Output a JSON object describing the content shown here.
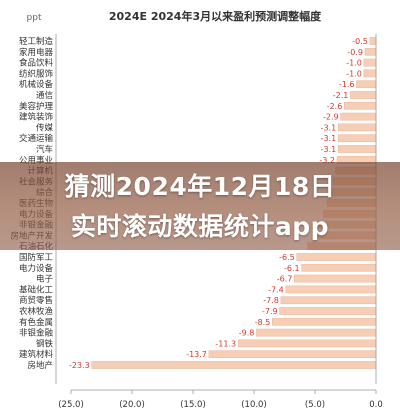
{
  "overlay": {
    "line1": "猜测2024年12月18日",
    "line2": "实时滚动数据统计app"
  },
  "chart_data": {
    "type": "bar",
    "orientation": "horizontal",
    "title": "2024E 2024年3月以来盈利预测调整幅度",
    "unit_label": "ppt",
    "categories": [
      "轻工制造",
      "家用电器",
      "食品饮料",
      "纺织服饰",
      "机械设备",
      "通信",
      "美容护理",
      "建筑装饰",
      "传媒",
      "交通运输",
      "汽车",
      "公用事业",
      "计算机",
      "社会服务",
      "综合",
      "医药生物",
      "电力设备",
      "非银金融",
      "房地产开发",
      "石油石化",
      "国防军工",
      "电力设备",
      "电子",
      "基础化工",
      "商贸零售",
      "农林牧渔",
      "有色金属",
      "非银金融",
      "钢铁",
      "建筑材料",
      "房地产"
    ],
    "values": [
      -0.5,
      -0.9,
      -1.0,
      -1.0,
      -1.6,
      -2.1,
      -2.6,
      -2.9,
      -3.1,
      -3.1,
      -3.1,
      -3.2,
      -3.3,
      -3.5,
      -3.8,
      -4.0,
      -4.3,
      -4.8,
      -5.0,
      -5.6,
      -6.5,
      -6.1,
      -6.7,
      -7.4,
      -7.8,
      -7.9,
      -8.5,
      -9.8,
      -11.3,
      -13.7,
      -23.3
    ],
    "data_labels": [
      "-0.5",
      "-0.9",
      "-1.0",
      "-1.0",
      "-1.6",
      "-2.1",
      "-2.6",
      "-2.9",
      "-3.1",
      "-3.1",
      "-3.1",
      "-3.2",
      "",
      "",
      "",
      "",
      "",
      "",
      "",
      "",
      "-6.5",
      "-6.1",
      "-6.7",
      "-7.4",
      "-7.8",
      "-7.9",
      "-8.5",
      "-9.8",
      "-11.3",
      "-13.7",
      "-23.3"
    ],
    "xlim": [
      -25,
      0
    ],
    "x_ticks": [
      -25,
      -20,
      -15,
      -10,
      -5,
      0
    ],
    "x_tick_labels": [
      "(25.0)",
      "(20.0)",
      "(15.0)",
      "(10.0)",
      "(5.0)",
      "0.0"
    ],
    "grid": false,
    "colors": {
      "bar": "#f6cdb5",
      "bar_edge": "#eab79a",
      "label": "#d03b2c",
      "text": "#333333",
      "axis": "#999999"
    }
  }
}
